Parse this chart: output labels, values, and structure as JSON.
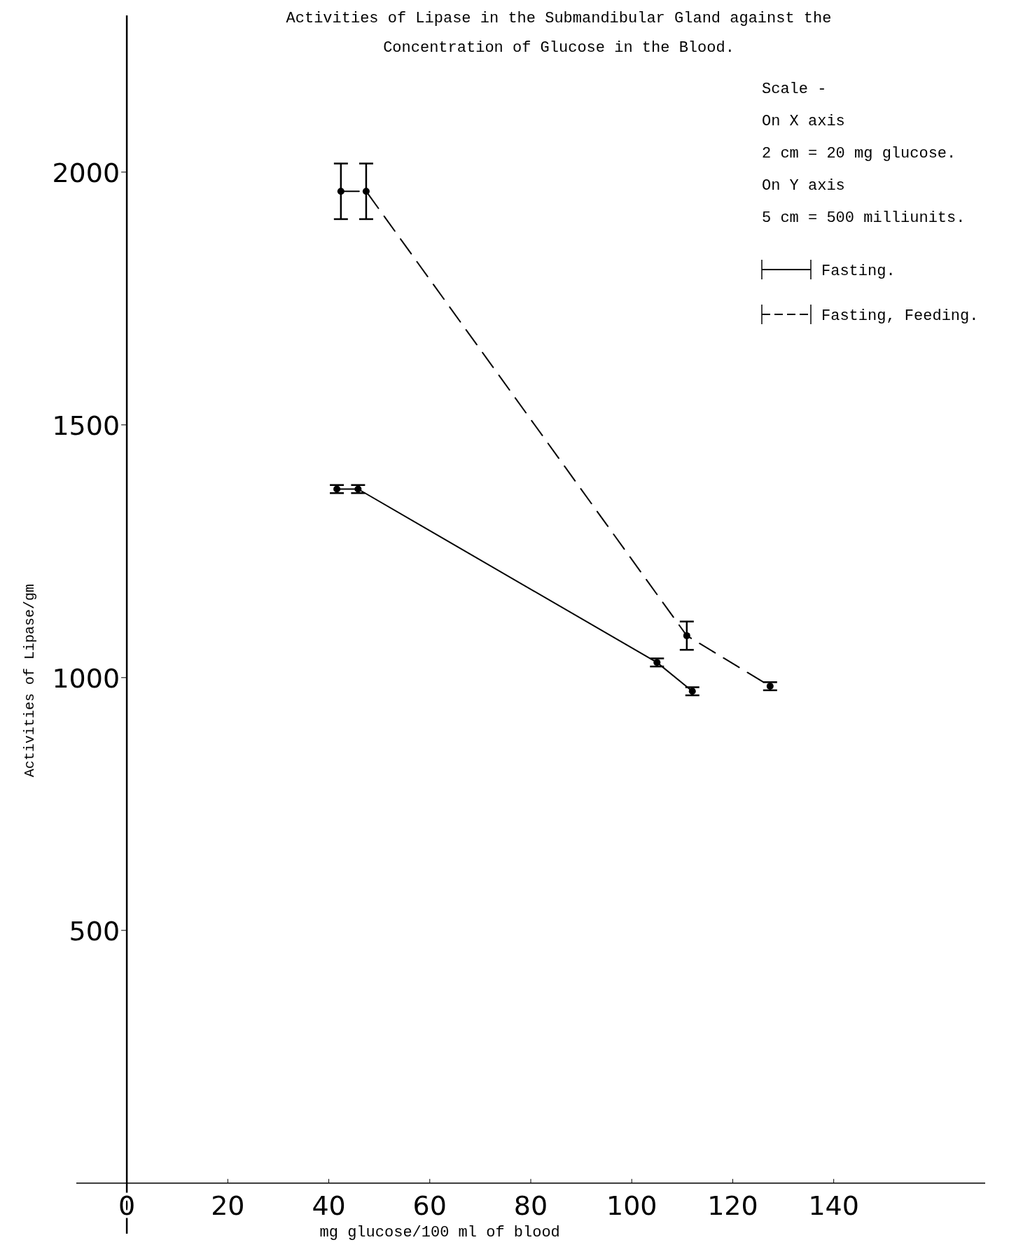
{
  "chart_data": {
    "type": "line",
    "title": "Activities of Lipase in the Submandibular Gland against the",
    "subtitle": "Concentration of Glucose in the Blood.",
    "xlabel": "mg glucose/100 ml of blood",
    "ylabel": "Activities of Lipase/gm",
    "annotations": [
      "Scale -",
      "On X axis",
      "2 cm = 20 mg glucose.",
      "On Y axis",
      "5 cm = 500 milliunits."
    ],
    "xlim": [
      -10,
      170
    ],
    "xticks": [
      0,
      20,
      40,
      60,
      80,
      100,
      120,
      140
    ],
    "ylim": [
      -100,
      2310
    ],
    "yticks": [
      500,
      1000,
      1500,
      2000
    ],
    "legend": "top right",
    "marker": "circle",
    "series": [
      {
        "name": "Fasting.",
        "color": "#000000",
        "line_style": "solid",
        "x": [
          41.6,
          45.8,
          105,
          112
        ],
        "values": [
          1373,
          1373,
          1030,
          973
        ],
        "errors": [
          8,
          8,
          8,
          8
        ]
      },
      {
        "name": "Fasting, Feeding.",
        "color": "#000000",
        "line_style": "dashed",
        "x": [
          42.4,
          47.4,
          110.9,
          127.4
        ],
        "values": [
          1962,
          1962,
          1083,
          983
        ],
        "errors": [
          55,
          55,
          28,
          8
        ]
      }
    ]
  }
}
